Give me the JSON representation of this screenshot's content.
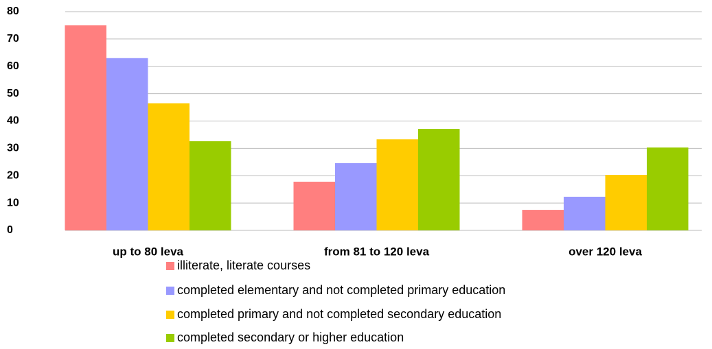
{
  "chart_data": {
    "type": "bar",
    "categories": [
      "up to 80 leva",
      "from 81 to 120 leva",
      "over 120 leva"
    ],
    "series": [
      {
        "name": "illiterate, literate courses",
        "color": "#ff7f7f",
        "values": [
          75,
          17.8,
          7.5
        ]
      },
      {
        "name": "completed elementary and not completed primary education",
        "color": "#9999ff",
        "values": [
          63,
          24.6,
          12.3
        ]
      },
      {
        "name": "completed primary and not completed secondary education",
        "color": "#ffcc00",
        "values": [
          46.5,
          33.3,
          20.3
        ]
      },
      {
        "name": "completed secondary or higher education",
        "color": "#99cc00",
        "values": [
          32.6,
          37.1,
          30.3
        ]
      }
    ],
    "ylim": [
      0,
      80
    ],
    "yticks": [
      0,
      10,
      20,
      30,
      40,
      50,
      60,
      70,
      80
    ],
    "grid": true,
    "legend": "bottom"
  }
}
